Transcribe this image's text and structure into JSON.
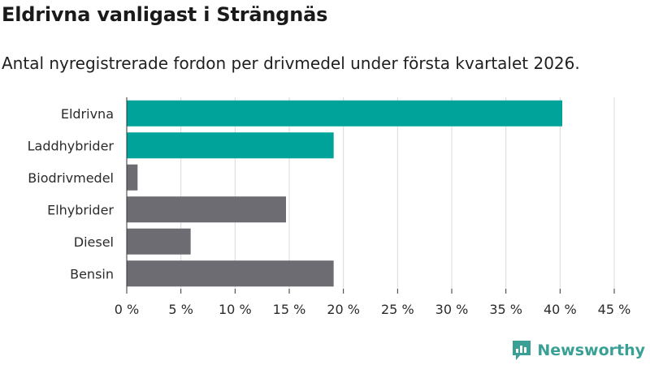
{
  "title": "Eldrivna vanligast i Strängnäs",
  "subtitle": "Antal nyregistrerade fordon per drivmedel under första kvartalet 2026.",
  "brand": {
    "name": "Newsworthy",
    "logo_icon": "newsworthy-chart-logo"
  },
  "colors": {
    "highlight": "#00a39a",
    "default": "#6d6c72",
    "grid": "#d9d9d9",
    "axis": "#333333",
    "brand": "#3aa095"
  },
  "chart_data": {
    "type": "bar",
    "orientation": "horizontal",
    "categories": [
      "Eldrivna",
      "Laddhybrider",
      "Biodrivmedel",
      "Elhybrider",
      "Diesel",
      "Bensin"
    ],
    "values": [
      40.2,
      19.1,
      1.0,
      14.7,
      5.9,
      19.1
    ],
    "highlighted": [
      true,
      true,
      false,
      false,
      false,
      false
    ],
    "xlim": [
      0,
      45
    ],
    "xticks": [
      0,
      5,
      10,
      15,
      20,
      25,
      30,
      35,
      40,
      45
    ],
    "xtick_labels": [
      "0 %",
      "5 %",
      "10 %",
      "15 %",
      "20 %",
      "25 %",
      "30 %",
      "35 %",
      "40 %",
      "45 %"
    ],
    "grid": true,
    "xlabel": "",
    "ylabel": ""
  }
}
